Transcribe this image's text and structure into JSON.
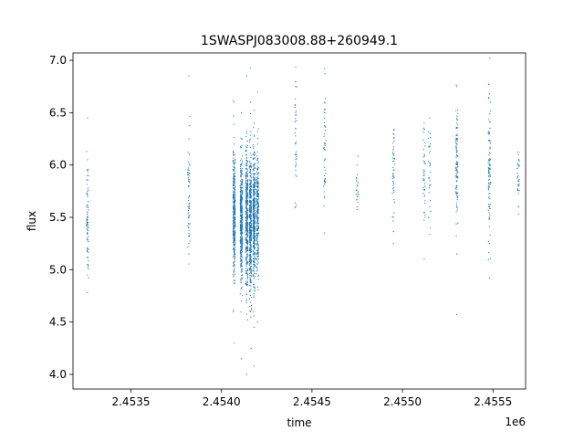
{
  "chart_data": {
    "type": "scatter",
    "title": "1SWASPJ083008.88+260949.1",
    "xlabel": "time",
    "ylabel": "flux",
    "x_offset_label": "1e6",
    "xlim": [
      2.45318,
      2.45568
    ],
    "ylim": [
      3.86,
      7.07
    ],
    "xticks": [
      2.4535,
      2.454,
      2.4545,
      2.455,
      2.4555
    ],
    "xtick_labels": [
      "2.4535",
      "2.4540",
      "2.4545",
      "2.4550",
      "2.4555"
    ],
    "yticks": [
      4.0,
      4.5,
      5.0,
      5.5,
      6.0,
      6.5,
      7.0
    ],
    "ytick_labels": [
      "4.0",
      "4.5",
      "5.0",
      "5.5",
      "6.0",
      "6.5",
      "7.0"
    ],
    "grid": false,
    "legend": "none",
    "marker_color": "#1f77b4",
    "series": [
      {
        "points": [
          [
            2.45326,
            5.55
          ],
          [
            2.45326,
            5.3
          ],
          [
            2.45326,
            5.75
          ],
          [
            2.45326,
            5.05
          ],
          [
            2.45326,
            4.95
          ],
          [
            2.45326,
            6.05
          ],
          [
            2.45326,
            4.78
          ],
          [
            2.45326,
            6.45
          ],
          [
            2.45326,
            5.45
          ],
          [
            2.45326,
            5.62
          ],
          [
            2.45326,
            5.2
          ],
          [
            2.45326,
            5.9
          ],
          [
            2.45382,
            5.4
          ],
          [
            2.45382,
            5.6
          ],
          [
            2.45382,
            5.15
          ],
          [
            2.45382,
            5.8
          ],
          [
            2.45382,
            6.25
          ],
          [
            2.45382,
            6.85
          ],
          [
            2.45382,
            5.95
          ],
          [
            2.45382,
            5.25
          ],
          [
            2.45382,
            5.5
          ],
          [
            2.45407,
            5.5
          ],
          [
            2.45407,
            4.9
          ],
          [
            2.45407,
            6.2
          ],
          [
            2.45407,
            4.3
          ],
          [
            2.45407,
            6.6
          ],
          [
            2.45407,
            5.3
          ],
          [
            2.45411,
            5.45
          ],
          [
            2.45411,
            5.0
          ],
          [
            2.45411,
            6.0
          ],
          [
            2.45411,
            4.7
          ],
          [
            2.45411,
            6.5
          ],
          [
            2.45411,
            4.15
          ],
          [
            2.45411,
            5.7
          ],
          [
            2.45414,
            5.55
          ],
          [
            2.45414,
            4.85
          ],
          [
            2.45414,
            6.3
          ],
          [
            2.45414,
            4.0
          ],
          [
            2.45414,
            6.85
          ],
          [
            2.45414,
            5.25
          ],
          [
            2.45416,
            5.4
          ],
          [
            2.45416,
            5.1
          ],
          [
            2.45416,
            5.9
          ],
          [
            2.45416,
            4.6
          ],
          [
            2.45416,
            6.6
          ],
          [
            2.45416,
            6.93
          ],
          [
            2.45416,
            5.65
          ],
          [
            2.45418,
            5.5
          ],
          [
            2.45418,
            4.75
          ],
          [
            2.45418,
            6.1
          ],
          [
            2.45418,
            4.45
          ],
          [
            2.45418,
            6.4
          ],
          [
            2.45418,
            4.08
          ],
          [
            2.45418,
            5.35
          ],
          [
            2.4542,
            5.6
          ],
          [
            2.4542,
            5.0
          ],
          [
            2.4542,
            6.2
          ],
          [
            2.4542,
            4.5
          ],
          [
            2.4542,
            6.7
          ],
          [
            2.4542,
            5.4
          ],
          [
            2.45441,
            6.75
          ],
          [
            2.45441,
            6.5
          ],
          [
            2.45441,
            6.2
          ],
          [
            2.45441,
            5.95
          ],
          [
            2.45441,
            5.6
          ],
          [
            2.45441,
            6.35
          ],
          [
            2.45457,
            6.2
          ],
          [
            2.45457,
            6.6
          ],
          [
            2.45457,
            5.9
          ],
          [
            2.45457,
            5.35
          ],
          [
            2.45457,
            6.92
          ],
          [
            2.45457,
            6.05
          ],
          [
            2.45475,
            5.8
          ],
          [
            2.45475,
            5.6
          ],
          [
            2.45475,
            6.0
          ],
          [
            2.45475,
            5.7
          ],
          [
            2.45495,
            5.9
          ],
          [
            2.45495,
            6.3
          ],
          [
            2.45495,
            5.5
          ],
          [
            2.45495,
            5.25
          ],
          [
            2.45495,
            6.1
          ],
          [
            2.45512,
            6.1
          ],
          [
            2.45512,
            5.7
          ],
          [
            2.45512,
            6.4
          ],
          [
            2.45512,
            5.1
          ],
          [
            2.45512,
            5.9
          ],
          [
            2.45515,
            5.85
          ],
          [
            2.45515,
            6.45
          ],
          [
            2.45515,
            5.6
          ],
          [
            2.4553,
            6.0
          ],
          [
            2.4553,
            5.6
          ],
          [
            2.4553,
            6.4
          ],
          [
            2.4553,
            5.15
          ],
          [
            2.4553,
            6.75
          ],
          [
            2.4553,
            4.57
          ],
          [
            2.4553,
            5.85
          ],
          [
            2.4553,
            6.2
          ],
          [
            2.45548,
            5.9
          ],
          [
            2.45548,
            5.5
          ],
          [
            2.45548,
            6.3
          ],
          [
            2.45548,
            4.92
          ],
          [
            2.45548,
            6.68
          ],
          [
            2.45548,
            5.25
          ],
          [
            2.45548,
            6.05
          ],
          [
            2.45564,
            5.8
          ],
          [
            2.45564,
            5.6
          ],
          [
            2.45564,
            6.1
          ],
          [
            2.45564,
            5.9
          ]
        ],
        "clusters": [
          {
            "x": 2.45326,
            "n": 70,
            "mean": 5.52,
            "sd": 0.3
          },
          {
            "x": 2.45382,
            "n": 55,
            "mean": 5.62,
            "sd": 0.32
          },
          {
            "x": 2.45407,
            "n": 380,
            "mean": 5.55,
            "sd": 0.28
          },
          {
            "x": 2.45411,
            "n": 400,
            "mean": 5.45,
            "sd": 0.3
          },
          {
            "x": 2.45414,
            "n": 420,
            "mean": 5.48,
            "sd": 0.32
          },
          {
            "x": 2.45416,
            "n": 420,
            "mean": 5.45,
            "sd": 0.32
          },
          {
            "x": 2.45418,
            "n": 400,
            "mean": 5.5,
            "sd": 0.3
          },
          {
            "x": 2.4542,
            "n": 260,
            "mean": 5.55,
            "sd": 0.28
          },
          {
            "x": 2.45441,
            "n": 35,
            "mean": 6.2,
            "sd": 0.35
          },
          {
            "x": 2.45457,
            "n": 45,
            "mean": 6.1,
            "sd": 0.3
          },
          {
            "x": 2.45475,
            "n": 20,
            "mean": 5.78,
            "sd": 0.12
          },
          {
            "x": 2.45495,
            "n": 45,
            "mean": 5.9,
            "sd": 0.28
          },
          {
            "x": 2.45512,
            "n": 40,
            "mean": 5.95,
            "sd": 0.28
          },
          {
            "x": 2.45515,
            "n": 30,
            "mean": 6.0,
            "sd": 0.25
          },
          {
            "x": 2.4553,
            "n": 110,
            "mean": 6.0,
            "sd": 0.28
          },
          {
            "x": 2.45548,
            "n": 95,
            "mean": 5.9,
            "sd": 0.3
          },
          {
            "x": 2.45564,
            "n": 30,
            "mean": 5.85,
            "sd": 0.15
          }
        ]
      }
    ]
  }
}
